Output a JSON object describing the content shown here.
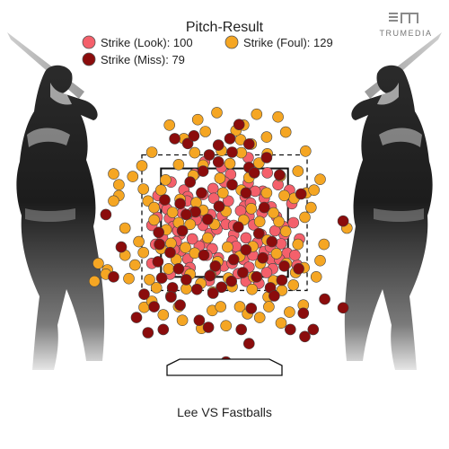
{
  "chart_data": {
    "type": "scatter",
    "title": "Pitch-Result",
    "caption": "Lee VS Fastballs",
    "brand": "TRUMEDIA",
    "legend_placement": "top-center",
    "grid": false,
    "xlim": [
      -2.5,
      2.5
    ],
    "ylim": [
      -0.2,
      5.0
    ],
    "strike_zone": {
      "x": [
        -0.83,
        0.83
      ],
      "y": [
        1.5,
        3.5
      ]
    },
    "series": [
      {
        "name": "Strike (Look)",
        "count": "100",
        "legend_label": "Strike (Look): 100",
        "color": "#f4606b",
        "points": [
          [
            -0.53,
            3.1
          ],
          [
            -0.48,
            2.98
          ],
          [
            -0.15,
            3.13
          ],
          [
            0.31,
            3.23
          ],
          [
            0.5,
            3.08
          ],
          [
            -0.79,
            2.83
          ],
          [
            -0.49,
            2.9
          ],
          [
            -0.14,
            2.95
          ],
          [
            0.27,
            2.98
          ],
          [
            0.52,
            2.95
          ],
          [
            -0.75,
            2.75
          ],
          [
            -0.41,
            2.7
          ],
          [
            -0.07,
            2.8
          ],
          [
            0.26,
            2.8
          ],
          [
            0.61,
            2.79
          ],
          [
            -0.72,
            2.58
          ],
          [
            -0.34,
            2.57
          ],
          [
            -0.03,
            2.62
          ],
          [
            0.32,
            2.62
          ],
          [
            0.68,
            2.61
          ],
          [
            -0.67,
            2.43
          ],
          [
            -0.28,
            2.45
          ],
          [
            0.02,
            2.47
          ],
          [
            0.38,
            2.46
          ],
          [
            0.77,
            2.43
          ],
          [
            -0.58,
            2.28
          ],
          [
            -0.19,
            2.3
          ],
          [
            0.12,
            2.28
          ],
          [
            0.48,
            2.28
          ],
          [
            0.78,
            2.28
          ],
          [
            -0.63,
            2.15
          ],
          [
            -0.25,
            2.13
          ],
          [
            0.1,
            2.16
          ],
          [
            0.43,
            2.13
          ],
          [
            0.74,
            2.11
          ],
          [
            -0.57,
            1.98
          ],
          [
            -0.16,
            2.02
          ],
          [
            0.17,
            1.99
          ],
          [
            0.52,
            1.97
          ],
          [
            0.82,
            1.94
          ],
          [
            -0.48,
            1.83
          ],
          [
            -0.08,
            1.85
          ],
          [
            0.25,
            1.82
          ],
          [
            0.61,
            1.82
          ],
          [
            -0.45,
            1.67
          ],
          [
            -0.01,
            1.7
          ],
          [
            0.32,
            1.68
          ],
          [
            0.63,
            1.65
          ],
          [
            -0.71,
            1.55
          ],
          [
            0.18,
            1.56
          ],
          [
            -0.88,
            2.6
          ],
          [
            0.9,
            2.5
          ],
          [
            -0.9,
            2.1
          ],
          [
            0.98,
            2.2
          ],
          [
            -0.95,
            1.75
          ],
          [
            0.95,
            1.72
          ],
          [
            -0.87,
            3.0
          ],
          [
            0.85,
            3.1
          ],
          [
            -0.2,
            1.43
          ],
          [
            0.28,
            1.42
          ],
          [
            -0.39,
            3.4
          ],
          [
            0.08,
            3.39
          ],
          [
            0.56,
            3.42
          ],
          [
            -0.26,
            3.62
          ],
          [
            0.31,
            3.7
          ],
          [
            0.45,
            1.38
          ],
          [
            -0.37,
            2.55
          ],
          [
            0.21,
            2.72
          ],
          [
            -0.61,
            2.35
          ],
          [
            0.66,
            2.35
          ],
          [
            -0.1,
            2.38
          ],
          [
            0.15,
            2.06
          ],
          [
            -0.33,
            2.07
          ],
          [
            0.37,
            1.9
          ],
          [
            -0.23,
            1.9
          ],
          [
            0.49,
            2.68
          ],
          [
            -0.55,
            2.68
          ],
          [
            0.05,
            2.9
          ],
          [
            0.4,
            3.08
          ],
          [
            -0.28,
            3.02
          ],
          [
            0.7,
            3.2
          ],
          [
            -0.7,
            3.25
          ],
          [
            0.88,
            2.85
          ],
          [
            -0.95,
            2.45
          ],
          [
            0.0,
            3.25
          ],
          [
            -0.5,
            1.6
          ],
          [
            0.55,
            1.58
          ],
          [
            0.72,
            1.82
          ],
          [
            -0.12,
            1.62
          ],
          [
            0.1,
            1.75
          ],
          [
            -0.42,
            2.2
          ],
          [
            0.28,
            2.22
          ],
          [
            0.92,
            1.9
          ],
          [
            -0.04,
            3.52
          ],
          [
            0.6,
            2.05
          ],
          [
            -0.66,
            2.0
          ],
          [
            0.34,
            2.86
          ],
          [
            -0.18,
            2.65
          ],
          [
            0.12,
            2.45
          ],
          [
            -0.81,
            2.22
          ]
        ]
      },
      {
        "name": "Strike (Foul)",
        "count": "129",
        "legend_label": "Strike (Foul): 129",
        "color": "#f5a623",
        "points": [
          [
            -0.77,
            3.29
          ],
          [
            -0.41,
            3.37
          ],
          [
            -0.06,
            3.32
          ],
          [
            0.32,
            3.33
          ],
          [
            0.73,
            3.36
          ],
          [
            -0.6,
            3.57
          ],
          [
            -0.28,
            3.56
          ],
          [
            0.07,
            3.59
          ],
          [
            0.45,
            3.6
          ],
          [
            -0.39,
            3.79
          ],
          [
            -0.04,
            3.83
          ],
          [
            0.22,
            3.79
          ],
          [
            0.56,
            3.77
          ],
          [
            0.21,
            4.03
          ],
          [
            0.55,
            4.08
          ],
          [
            0.8,
            4.17
          ],
          [
            -0.53,
            4.05
          ],
          [
            -1.45,
            3.4
          ],
          [
            -1.38,
            3.2
          ],
          [
            -1.06,
            3.12
          ],
          [
            -1.0,
            2.9
          ],
          [
            -0.92,
            2.78
          ],
          [
            0.91,
            2.95
          ],
          [
            1.07,
            3.05
          ],
          [
            1.17,
            3.1
          ],
          [
            1.13,
            2.78
          ],
          [
            -1.12,
            2.15
          ],
          [
            -1.06,
            1.95
          ],
          [
            -1.17,
            1.72
          ],
          [
            -1.25,
            1.47
          ],
          [
            -1.7,
            1.42
          ],
          [
            -1.53,
            1.63
          ],
          [
            1.6,
            2.4
          ],
          [
            1.04,
            1.67
          ],
          [
            1.2,
            1.5
          ],
          [
            0.93,
            1.58
          ],
          [
            -0.98,
            1.45
          ],
          [
            -0.89,
            1.3
          ],
          [
            -0.7,
            1.15
          ],
          [
            -0.5,
            1.28
          ],
          [
            -0.31,
            1.38
          ],
          [
            -0.15,
            1.22
          ],
          [
            0.1,
            1.32
          ],
          [
            0.36,
            1.27
          ],
          [
            0.57,
            1.13
          ],
          [
            0.75,
            1.25
          ],
          [
            -0.6,
            0.95
          ],
          [
            -0.16,
            0.88
          ],
          [
            0.2,
            0.95
          ],
          [
            0.46,
            0.75
          ],
          [
            0.74,
            0.65
          ],
          [
            -1.05,
            0.94
          ],
          [
            1.03,
            0.98
          ],
          [
            -0.73,
            1.65
          ],
          [
            -0.83,
            2.02
          ],
          [
            -0.76,
            2.37
          ],
          [
            -0.92,
            2.55
          ],
          [
            0.81,
            1.75
          ],
          [
            0.96,
            2.1
          ],
          [
            -0.45,
            1.55
          ],
          [
            -0.18,
            1.53
          ],
          [
            0.05,
            1.48
          ],
          [
            0.38,
            1.5
          ],
          [
            0.64,
            1.43
          ],
          [
            -0.63,
            1.82
          ],
          [
            -0.39,
            1.94
          ],
          [
            -0.09,
            1.78
          ],
          [
            0.2,
            1.88
          ],
          [
            0.47,
            1.75
          ],
          [
            0.68,
            1.93
          ],
          [
            -0.7,
            2.12
          ],
          [
            -0.51,
            2.04
          ],
          [
            -0.22,
            2.22
          ],
          [
            0.04,
            2.05
          ],
          [
            0.37,
            2.06
          ],
          [
            0.56,
            2.18
          ],
          [
            0.8,
            2.34
          ],
          [
            -0.6,
            2.5
          ],
          [
            -0.45,
            2.47
          ],
          [
            -0.13,
            2.47
          ],
          [
            0.25,
            2.55
          ],
          [
            0.46,
            2.52
          ],
          [
            0.71,
            2.52
          ],
          [
            -0.68,
            2.69
          ],
          [
            -0.28,
            2.73
          ],
          [
            0.02,
            2.71
          ],
          [
            0.35,
            2.76
          ],
          [
            0.64,
            2.68
          ],
          [
            -0.83,
            3.1
          ],
          [
            -0.58,
            2.93
          ],
          [
            -0.37,
            2.87
          ],
          [
            -0.02,
            3.05
          ],
          [
            0.22,
            3.1
          ],
          [
            0.55,
            3.05
          ],
          [
            0.78,
            3.0
          ],
          [
            -1.08,
            3.55
          ],
          [
            -0.95,
            3.8
          ],
          [
            1.06,
            3.82
          ],
          [
            -0.25,
            4.18
          ],
          [
            0.25,
            4.3
          ],
          [
            -0.1,
            4.53
          ],
          [
            0.7,
            4.45
          ],
          [
            -1.38,
            3.0
          ],
          [
            0.02,
            0.6
          ],
          [
            -1.65,
            1.75
          ],
          [
            1.05,
            2.6
          ],
          [
            -1.3,
            2.4
          ],
          [
            -0.3,
            0.55
          ],
          [
            0.58,
            0.95
          ],
          [
            -0.95,
            1.05
          ],
          [
            0.9,
            1.35
          ],
          [
            0.15,
            4.2
          ],
          [
            -0.72,
            4.3
          ],
          [
            0.96,
            3.45
          ],
          [
            1.25,
            3.3
          ],
          [
            -1.2,
            3.35
          ],
          [
            0.42,
            4.5
          ],
          [
            -0.55,
            0.7
          ],
          [
            0.85,
            0.85
          ],
          [
            -0.8,
            0.8
          ],
          [
            1.25,
            1.8
          ],
          [
            -1.45,
            2.9
          ],
          [
            -1.3,
            1.9
          ],
          [
            1.3,
            2.1
          ],
          [
            -0.35,
            4.4
          ],
          [
            0.35,
            3.95
          ],
          [
            -0.05,
            0.95
          ],
          [
            0.3,
            0.82
          ],
          [
            -1.55,
            1.55
          ]
        ]
      },
      {
        "name": "Strike (Miss)",
        "count": "79",
        "legend_label": "Strike (Miss): 79",
        "color": "#8b0c0c",
        "points": [
          [
            0.19,
            4.31
          ],
          [
            -0.65,
            4.05
          ],
          [
            -0.48,
            3.96
          ],
          [
            -0.08,
            3.93
          ],
          [
            0.07,
            4.05
          ],
          [
            -0.2,
            3.75
          ],
          [
            0.55,
            3.7
          ],
          [
            -0.08,
            3.62
          ],
          [
            0.32,
            3.52
          ],
          [
            -0.28,
            3.45
          ],
          [
            0.39,
            3.42
          ],
          [
            0.72,
            3.38
          ],
          [
            -0.45,
            3.25
          ],
          [
            0.1,
            3.2
          ],
          [
            -0.3,
            3.05
          ],
          [
            0.28,
            3.05
          ],
          [
            -0.78,
            2.92
          ],
          [
            -0.38,
            2.7
          ],
          [
            -0.07,
            2.8
          ],
          [
            0.52,
            2.78
          ],
          [
            -0.55,
            2.35
          ],
          [
            -0.85,
            2.1
          ],
          [
            0.62,
            2.15
          ],
          [
            -0.71,
            1.95
          ],
          [
            -0.27,
            1.9
          ],
          [
            0.12,
            1.82
          ],
          [
            0.5,
            1.85
          ],
          [
            -0.6,
            1.65
          ],
          [
            -0.12,
            1.7
          ],
          [
            0.24,
            1.58
          ],
          [
            0.78,
            1.7
          ],
          [
            -0.82,
            1.48
          ],
          [
            -0.5,
            1.45
          ],
          [
            -0.19,
            1.52
          ],
          [
            0.09,
            1.42
          ],
          [
            0.42,
            1.5
          ],
          [
            0.75,
            1.44
          ],
          [
            -0.68,
            1.3
          ],
          [
            -0.36,
            1.27
          ],
          [
            -0.04,
            1.31
          ],
          [
            0.6,
            1.3
          ],
          [
            -1.55,
            2.65
          ],
          [
            -1.35,
            2.05
          ],
          [
            1.0,
            3.03
          ],
          [
            1.55,
            2.53
          ],
          [
            -0.7,
            1.13
          ],
          [
            1.31,
            1.09
          ],
          [
            1.55,
            0.93
          ],
          [
            -1.15,
            0.75
          ],
          [
            -0.58,
            0.98
          ],
          [
            -0.21,
            0.57
          ],
          [
            0.22,
            0.53
          ],
          [
            0.86,
            0.53
          ],
          [
            -0.8,
            0.53
          ],
          [
            -1.0,
            0.47
          ],
          [
            1.16,
            0.53
          ],
          [
            1.03,
            0.83
          ],
          [
            0.32,
            0.27
          ],
          [
            0.02,
            -0.07
          ],
          [
            -1.05,
            1.18
          ],
          [
            -0.87,
            1.78
          ],
          [
            0.97,
            1.65
          ],
          [
            0.18,
            2.42
          ],
          [
            -0.22,
            2.56
          ],
          [
            -0.58,
            2.85
          ],
          [
            0.45,
            2.3
          ],
          [
            -1.45,
            1.5
          ],
          [
            1.05,
            0.4
          ],
          [
            -0.33,
            0.7
          ],
          [
            0.35,
            0.92
          ],
          [
            -0.92,
            0.95
          ],
          [
            0.1,
            3.8
          ],
          [
            -0.4,
            4.1
          ],
          [
            0.32,
            3.95
          ],
          [
            0.65,
            1.15
          ],
          [
            -0.15,
            1.2
          ],
          [
            -0.5,
            2.65
          ],
          [
            0.28,
            2.0
          ],
          [
            -0.86,
            2.32
          ]
        ]
      }
    ]
  }
}
